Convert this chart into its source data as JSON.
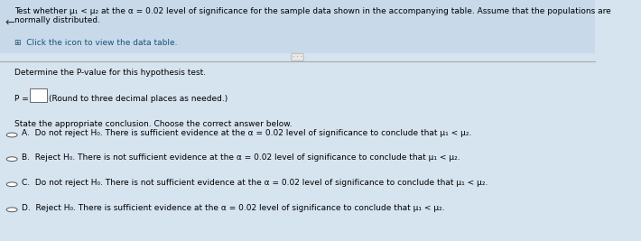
{
  "bg_color": "#d6e4f0",
  "header_bg": "#c8daea",
  "title_text": "Test whether μ₁ < μ₂ at the α = 0.02 level of significance for the sample data shown in the accompanying table. Assume that the populations are normally distributed.",
  "click_text": "Click the icon to view the data table.",
  "determine_text": "Determine the P-value for this hypothesis test.",
  "p_label": "P =",
  "p_box_hint": "(Round to three decimal places as needed.)",
  "state_text": "State the appropriate conclusion. Choose the correct answer below.",
  "options": [
    {
      "letter": "A.",
      "text": "Do not reject H₀. There is sufficient evidence at the α = 0.02 level of significance to conclude that μ₁ < μ₂."
    },
    {
      "letter": "B.",
      "text": "Reject H₀. There is not sufficient evidence at the α = 0.02 level of significance to conclude that μ₁ < μ₂."
    },
    {
      "letter": "C.",
      "text": "Do not reject H₀. There is not sufficient evidence at the α = 0.02 level of significance to conclude that μ₁ < μ₂."
    },
    {
      "letter": "D.",
      "text": "Reject H₀. There is sufficient evidence at the α = 0.02 level of significance to conclude that μ₁ < μ₂."
    }
  ],
  "font_size_title": 6.5,
  "font_size_body": 6.5,
  "text_color": "#000000",
  "header_text_color": "#000000",
  "divider_color": "#aaaaaa",
  "circle_color": "#555555",
  "arrow_color": "#666666"
}
